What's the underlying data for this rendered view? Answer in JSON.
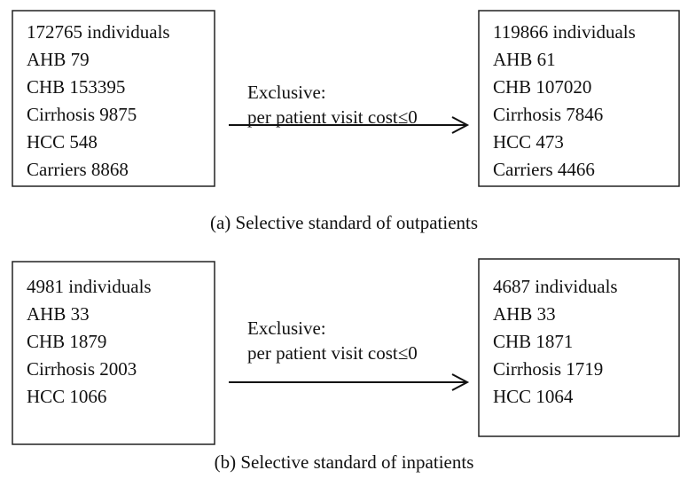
{
  "panels": [
    {
      "left": [
        "172765 individuals",
        "AHB 79",
        "CHB 153395",
        "Cirrhosis 9875",
        "HCC 548",
        "Carriers 8868"
      ],
      "arrow": [
        "Exclusive:",
        "per patient visit cost≤0"
      ],
      "right": [
        "119866 individuals",
        "AHB 61",
        "CHB 107020",
        "Cirrhosis 7846",
        "HCC 473",
        "Carriers 4466"
      ],
      "caption": "(a) Selective standard of outpatients"
    },
    {
      "left": [
        "4981 individuals",
        "AHB 33",
        "CHB 1879",
        "Cirrhosis 2003",
        "HCC 1066"
      ],
      "arrow": [
        "Exclusive:",
        "per patient visit cost≤0"
      ],
      "right": [
        "4687 individuals",
        "AHB 33",
        "CHB 1871",
        "Cirrhosis 1719",
        "HCC 1064"
      ],
      "caption": "(b) Selective standard of inpatients"
    }
  ]
}
